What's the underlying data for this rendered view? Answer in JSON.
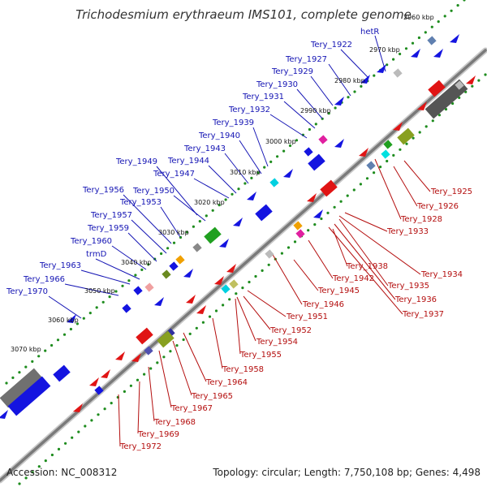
{
  "title": "Trichodesmium erythraeum IMS101, complete genome",
  "footer": {
    "accession": "Accession: NC_008312",
    "summary": "Topology: circular; Length: 7,750,108 bp; Genes: 4,498"
  },
  "colors": {
    "forward_strand": "#1414e0",
    "reverse_strand": "#e01414",
    "top_label": "#1414b4",
    "bottom_label": "#b40e0e",
    "tick_dots": "#1e8c1e",
    "backbone": "#888888"
  },
  "scale_labels": [
    "2960 kbp",
    "2970 kbp",
    "2980 kbp",
    "2990 kbp",
    "3000 kbp",
    "3010 kbp",
    "3020 kbp",
    "3030 kbp",
    "3040 kbp",
    "3050 kbp",
    "3060 kbp",
    "3070 kbp"
  ],
  "top_gene_labels": [
    "hetR",
    "Tery_1922",
    "Tery_1927",
    "Tery_1929",
    "Tery_1930",
    "Tery_1931",
    "Tery_1932",
    "Tery_1939",
    "Tery_1940",
    "Tery_1943",
    "Tery_1944",
    "Tery_1947",
    "Tery_1949",
    "Tery_1950",
    "Tery_1956",
    "Tery_1953",
    "Tery_1957",
    "Tery_1959",
    "Tery_1960",
    "trmD",
    "Tery_1963",
    "Tery_1966",
    "Tery_1970"
  ],
  "bottom_gene_labels": [
    "Tery_1925",
    "Tery_1926",
    "Tery_1928",
    "Tery_1933",
    "Tery_1934",
    "Tery_1935",
    "Tery_1936",
    "Tery_1937",
    "Tery_1938",
    "Tery_1942",
    "Tery_1945",
    "Tery_1946",
    "Tery_1951",
    "Tery_1952",
    "Tery_1954",
    "Tery_1955",
    "Tery_1958",
    "Tery_1964",
    "Tery_1965",
    "Tery_1967",
    "Tery_1968",
    "Tery_1969",
    "Tery_1972"
  ]
}
